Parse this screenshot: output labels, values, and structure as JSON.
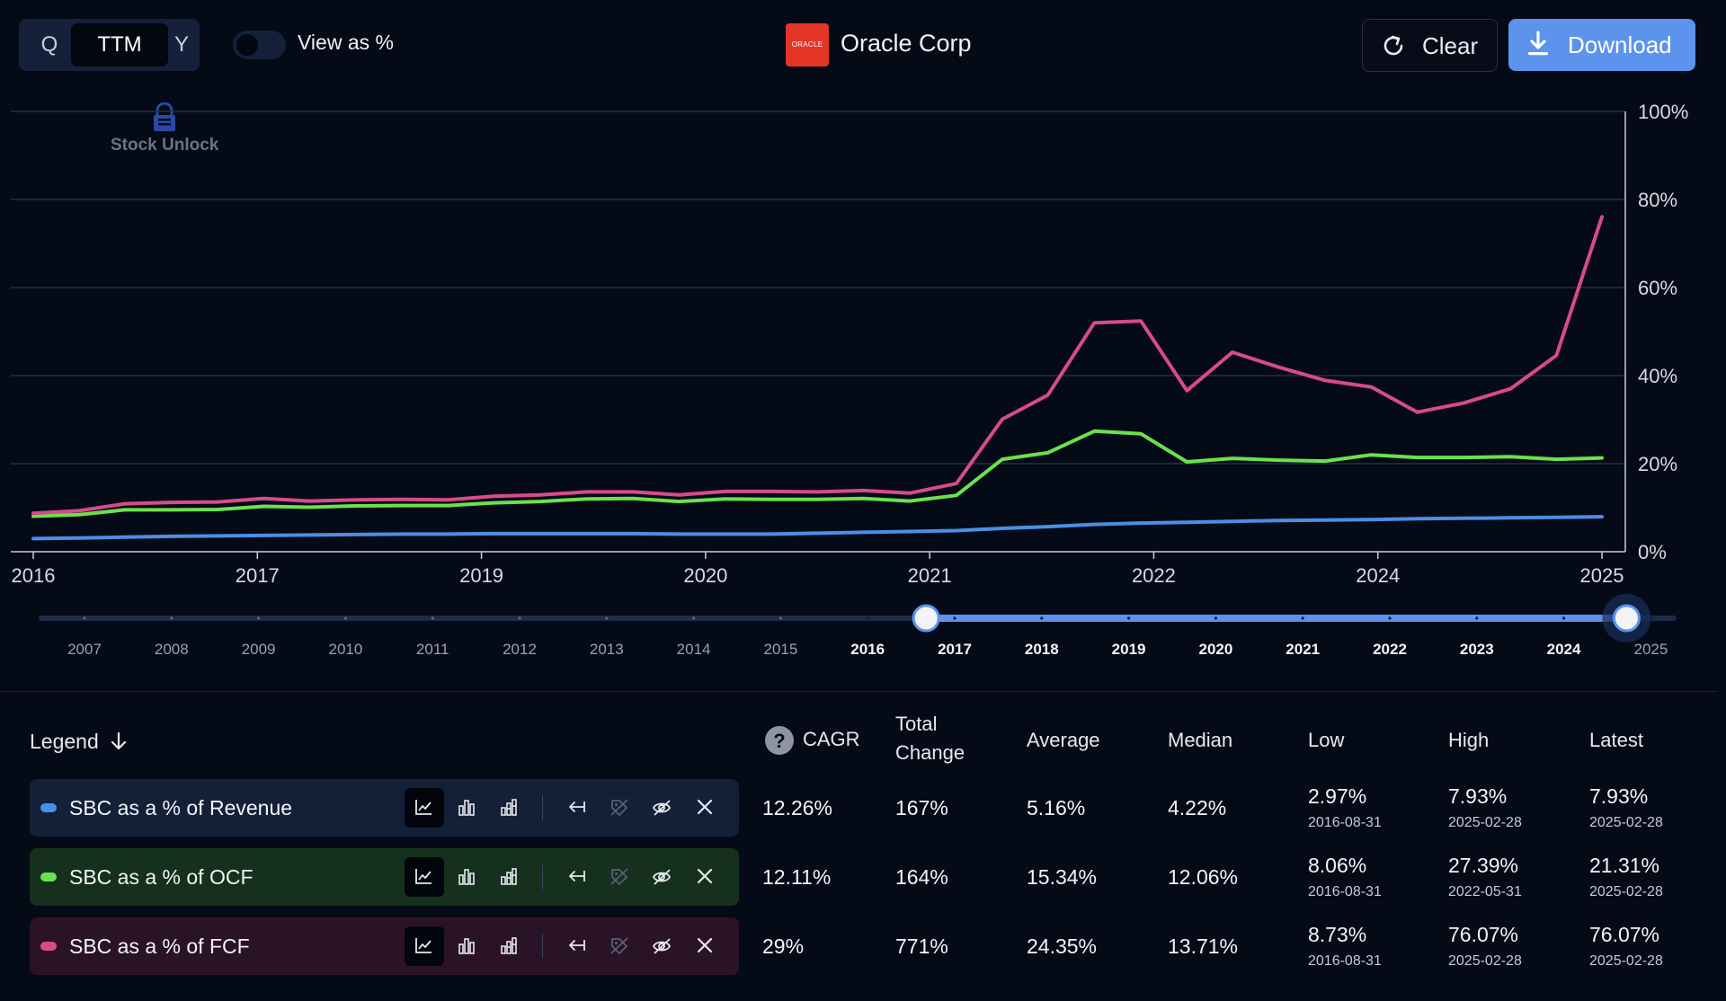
{
  "period_selector": {
    "options": [
      "Q",
      "TTM",
      "Y"
    ],
    "selected": "TTM"
  },
  "view_as_percent": {
    "label": "View as %",
    "enabled": false
  },
  "company": {
    "name": "Oracle Corp",
    "logo_text": "ORACLE"
  },
  "buttons": {
    "clear": "Clear",
    "download": "Download"
  },
  "watermark": "Stock Unlock",
  "chart_data": {
    "type": "line",
    "x_tick_labels": [
      "2016",
      "2017",
      "2019",
      "2020",
      "2021",
      "2022",
      "2024",
      "2025"
    ],
    "y_tick_labels": [
      "100%",
      "80%",
      "60%",
      "40%",
      "20%",
      "0%"
    ],
    "ylim": [
      0,
      100
    ],
    "grid": true,
    "y_axis_side": "right",
    "x": [
      "2016-08-31",
      "2016-11-30",
      "2017-02-28",
      "2017-05-31",
      "2017-08-31",
      "2017-11-30",
      "2018-02-28",
      "2018-05-31",
      "2018-08-31",
      "2018-11-30",
      "2019-02-28",
      "2019-05-31",
      "2019-08-31",
      "2019-11-30",
      "2020-02-29",
      "2020-05-31",
      "2020-08-31",
      "2020-11-30",
      "2021-02-28",
      "2021-05-31",
      "2021-08-31",
      "2021-11-30",
      "2022-02-28",
      "2022-05-31",
      "2022-08-31",
      "2022-11-30",
      "2023-02-28",
      "2023-05-31",
      "2023-08-31",
      "2023-11-30",
      "2024-02-29",
      "2024-05-31",
      "2024-08-31",
      "2024-11-30",
      "2025-02-28"
    ],
    "series": [
      {
        "name": "SBC as a % of Revenue",
        "color": "#4a8fe7",
        "values": [
          2.97,
          3.1,
          3.3,
          3.5,
          3.6,
          3.7,
          3.8,
          3.9,
          4.0,
          4.0,
          4.1,
          4.1,
          4.1,
          4.1,
          4.0,
          4.0,
          4.0,
          4.2,
          4.4,
          4.6,
          4.8,
          5.3,
          5.7,
          6.2,
          6.5,
          6.7,
          6.9,
          7.1,
          7.2,
          7.3,
          7.5,
          7.6,
          7.7,
          7.8,
          7.93
        ]
      },
      {
        "name": "SBC as a % of OCF",
        "color": "#6ae24c",
        "values": [
          8.06,
          8.4,
          9.5,
          9.5,
          9.6,
          10.3,
          10.1,
          10.4,
          10.5,
          10.5,
          11.1,
          11.4,
          12.0,
          12.1,
          11.4,
          12.0,
          11.9,
          11.9,
          12.1,
          11.5,
          12.8,
          21.0,
          22.5,
          27.39,
          26.8,
          20.4,
          21.2,
          20.8,
          20.6,
          22.0,
          21.4,
          21.4,
          21.6,
          21.0,
          21.31
        ]
      },
      {
        "name": "SBC as a % of FCF",
        "color": "#d84b89",
        "values": [
          8.73,
          9.3,
          10.9,
          11.2,
          11.3,
          12.1,
          11.5,
          11.8,
          11.9,
          11.8,
          12.6,
          12.9,
          13.6,
          13.6,
          12.9,
          13.7,
          13.7,
          13.6,
          13.9,
          13.3,
          15.5,
          30.1,
          35.6,
          52.0,
          52.4,
          36.6,
          45.3,
          41.9,
          38.9,
          37.4,
          31.7,
          33.8,
          37.0,
          44.6,
          76.07
        ]
      }
    ]
  },
  "range_slider": {
    "years": [
      "2007",
      "2008",
      "2009",
      "2010",
      "2011",
      "2012",
      "2013",
      "2014",
      "2015",
      "2016",
      "2017",
      "2018",
      "2019",
      "2020",
      "2021",
      "2022",
      "2023",
      "2024",
      "2025"
    ],
    "selected_start": "2016",
    "selected_end": "2025"
  },
  "table": {
    "legend_header": "Legend",
    "columns": {
      "cagr": "CAGR",
      "total_change": "Total Change",
      "average": "Average",
      "median": "Median",
      "low": "Low",
      "high": "High",
      "latest": "Latest"
    },
    "rows": [
      {
        "name": "SBC as a % of Revenue",
        "color": "#4a8fe7",
        "bg": "#132038",
        "cagr": "12.26%",
        "total_change": "167%",
        "average": "5.16%",
        "median": "4.22%",
        "low": "2.97%",
        "low_date": "2016-08-31",
        "high": "7.93%",
        "high_date": "2025-02-28",
        "latest": "7.93%",
        "latest_date": "2025-02-28"
      },
      {
        "name": "SBC as a % of OCF",
        "color": "#6ae24c",
        "bg": "#15301c",
        "cagr": "12.11%",
        "total_change": "164%",
        "average": "15.34%",
        "median": "12.06%",
        "low": "8.06%",
        "low_date": "2016-08-31",
        "high": "27.39%",
        "high_date": "2022-05-31",
        "latest": "21.31%",
        "latest_date": "2025-02-28"
      },
      {
        "name": "SBC as a % of FCF",
        "color": "#d84b89",
        "bg": "#2a1327",
        "cagr": "29%",
        "total_change": "771%",
        "average": "24.35%",
        "median": "13.71%",
        "low": "8.73%",
        "low_date": "2016-08-31",
        "high": "76.07%",
        "high_date": "2025-02-28",
        "latest": "76.07%",
        "latest_date": "2025-02-28"
      }
    ]
  }
}
